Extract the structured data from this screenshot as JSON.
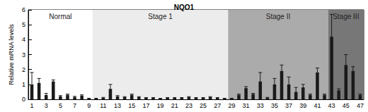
{
  "chart_data": {
    "type": "bar",
    "title": "NQO1",
    "y_label": "Relative mRNA levels",
    "categories": [
      "1",
      null,
      "3",
      null,
      "5",
      null,
      "7",
      null,
      "9",
      null,
      "11",
      null,
      "13",
      null,
      "15",
      null,
      "17",
      null,
      "19",
      null,
      "21",
      null,
      "23",
      null,
      "25",
      null,
      "27",
      null,
      "29",
      null,
      "31",
      null,
      "33",
      null,
      "35",
      null,
      "37",
      null,
      "39",
      null,
      "41",
      null,
      "43",
      null,
      "45",
      null,
      "47"
    ],
    "values": [
      1.0,
      1.1,
      0.3,
      1.2,
      0.2,
      0.3,
      0.15,
      0.25,
      0.05,
      0.05,
      0.1,
      0.7,
      0.2,
      0.15,
      0.3,
      0.15,
      0.1,
      0.1,
      0.05,
      0.1,
      0.1,
      0.1,
      0.15,
      0.1,
      0.1,
      0.15,
      0.1,
      0.05,
      0.05,
      0.3,
      0.75,
      0.35,
      1.2,
      0.1,
      1.0,
      1.9,
      1.0,
      0.5,
      0.8,
      0.3,
      1.8,
      0.3,
      4.2,
      0.6,
      2.3,
      1.9,
      0.3
    ],
    "errors": [
      0.8,
      0.3,
      0.1,
      0.1,
      0.05,
      0.05,
      0.05,
      0.05,
      0.02,
      0.02,
      0.03,
      0.3,
      0.05,
      0.03,
      0.05,
      0.03,
      0.02,
      0.02,
      0.02,
      0.02,
      0.02,
      0.02,
      0.03,
      0.02,
      0.02,
      0.03,
      0.02,
      0.02,
      0.02,
      0.05,
      0.1,
      0.05,
      0.6,
      0.03,
      0.4,
      0.4,
      0.5,
      0.3,
      0.2,
      0.05,
      0.3,
      0.05,
      1.5,
      0.1,
      0.7,
      0.3,
      0.05
    ],
    "color": "#1a1a1a",
    "regions": [
      {
        "label": "Normal",
        "start": 1,
        "end": 9,
        "color": "#ffffff"
      },
      {
        "label": "Stage 1",
        "start": 10,
        "end": 28,
        "color": "#ececec"
      },
      {
        "label": "Stage II",
        "start": 29,
        "end": 42,
        "color": "#ababab"
      },
      {
        "label": "Stage III",
        "start": 43,
        "end": 47,
        "color": "#777777"
      }
    ],
    "ylim": [
      0,
      6
    ],
    "yticks": [
      0,
      1,
      2,
      3,
      4,
      5,
      6
    ],
    "grid": false
  }
}
